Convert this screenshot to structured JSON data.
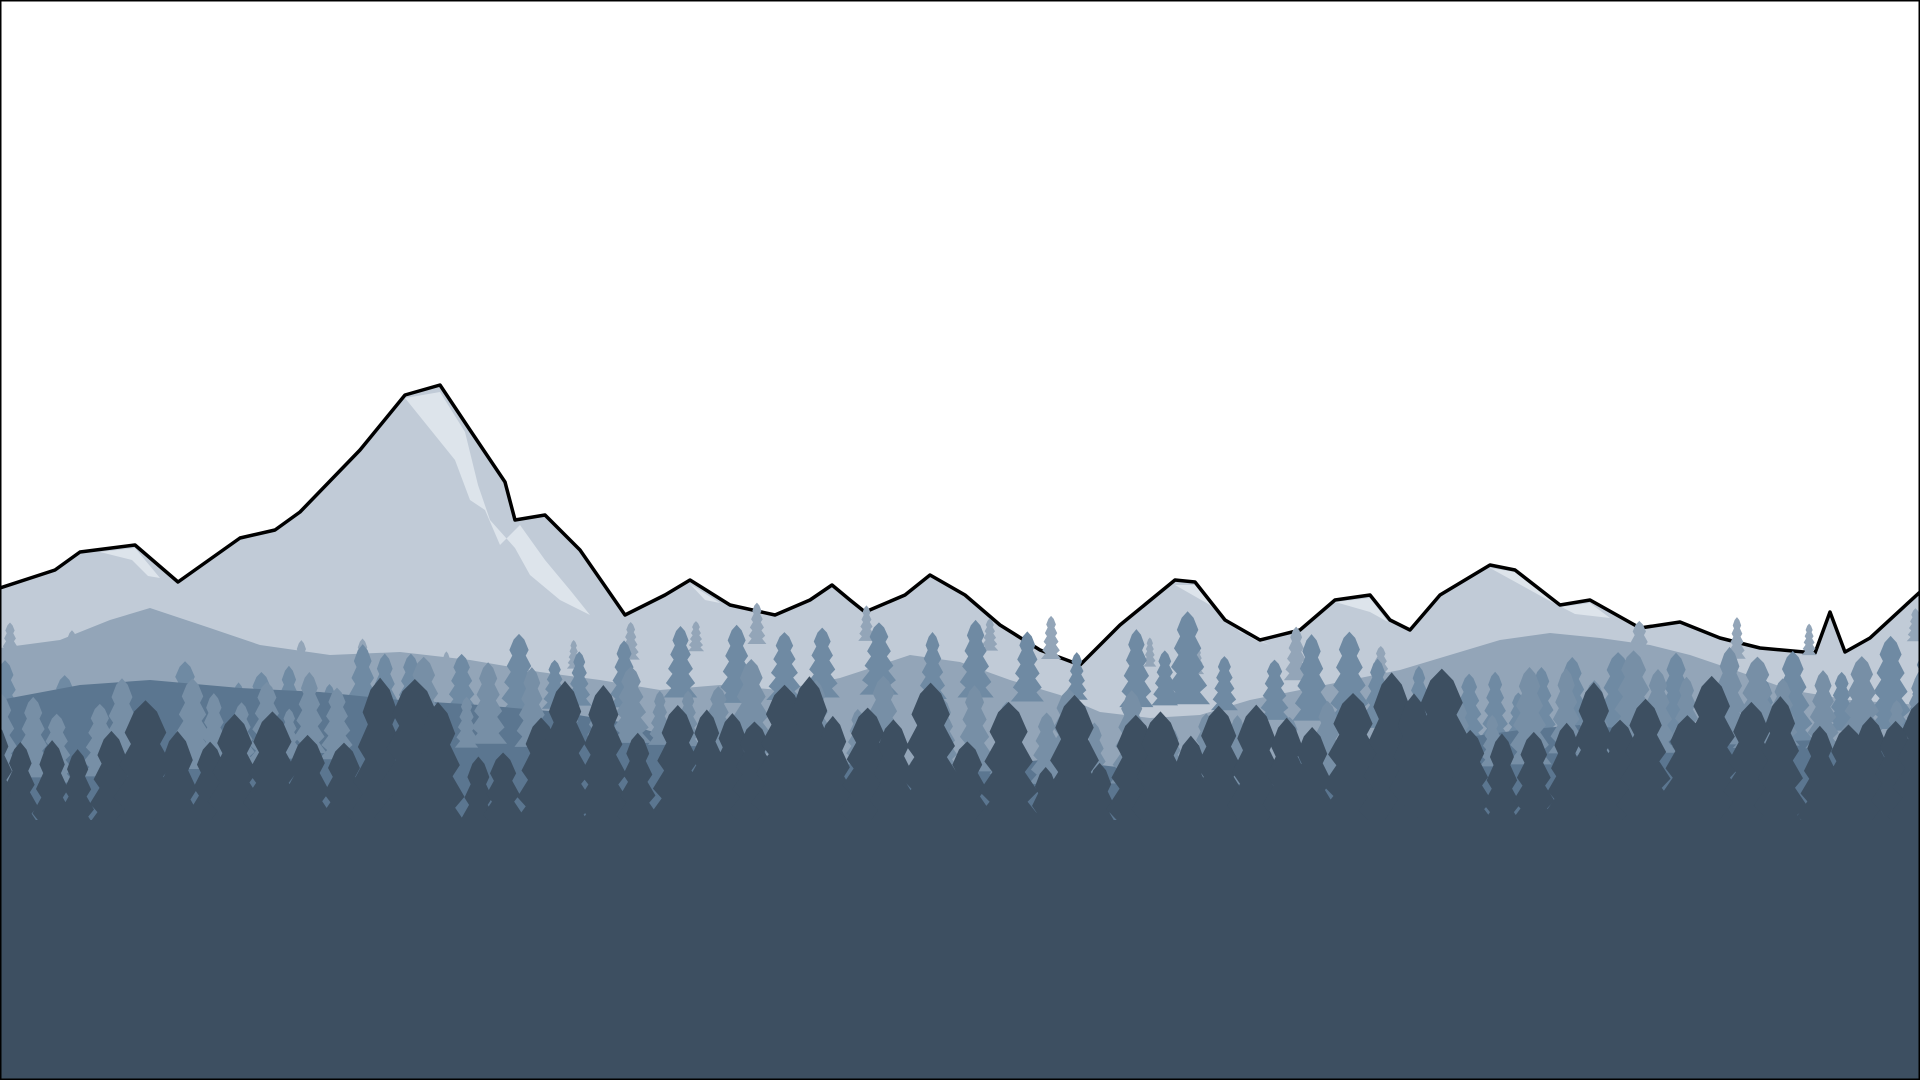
{
  "scene": {
    "colors": {
      "sky": "#ffffff",
      "frame": "#000000",
      "ridge_outline": "#000000",
      "far_mountains": "#c1cbd7",
      "snow": "#dde4eb",
      "mid_hills": "#93a5b8",
      "mid_trees": "#6f8aa3",
      "near_hills": "#5b7690",
      "near_trees": "#778fa6",
      "foreground": "#3d4f61"
    },
    "layers": [
      "sky",
      "far-mountain-range",
      "snow-caps",
      "distant-tree-line",
      "mid-hills",
      "mid-tree-line",
      "near-hills",
      "foreground-forest"
    ]
  }
}
